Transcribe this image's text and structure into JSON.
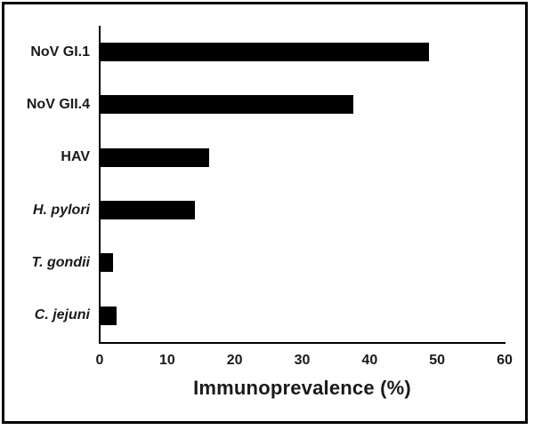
{
  "chart_data": {
    "type": "bar",
    "orientation": "horizontal",
    "title": "",
    "xlabel": "Immunoprevalence (%)",
    "ylabel": "",
    "categories": [
      "NoV GI.1",
      "NoV GII.4",
      "HAV",
      "H. pylori",
      "T. gondii",
      "C. jejuni"
    ],
    "italic_categories": [
      false,
      false,
      false,
      true,
      true,
      true
    ],
    "values": [
      48.7,
      37.5,
      16.1,
      14.0,
      1.9,
      2.4
    ],
    "xlim": [
      0,
      60
    ],
    "xticks": [
      0,
      10,
      20,
      30,
      40,
      50,
      60
    ],
    "grid": false,
    "legend_position": "none",
    "bar_color": "#000000"
  },
  "colors": {
    "background": "#ffffff",
    "frame_border": "#000000",
    "axis": "#000000",
    "text": "#1a1a1a"
  }
}
